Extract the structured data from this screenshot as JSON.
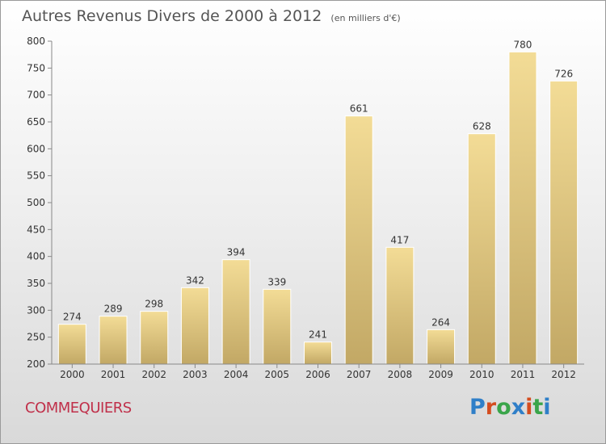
{
  "header": {
    "title": "Autres Revenus Divers de 2000 à 2012",
    "unit": "(en milliers d'€)"
  },
  "commune": "COMMEQUIERS",
  "brand": {
    "letters": [
      "P",
      "r",
      "o",
      "x",
      "i",
      "t",
      "i"
    ],
    "colors": [
      "#2f7fc8",
      "#d44d1f",
      "#3aa54a",
      "#2f7fc8",
      "#d44d1f",
      "#3aa54a",
      "#2f7fc8"
    ]
  },
  "chart_data": {
    "type": "bar",
    "categories": [
      "2000",
      "2001",
      "2002",
      "2003",
      "2004",
      "2005",
      "2006",
      "2007",
      "2008",
      "2009",
      "2010",
      "2011",
      "2012"
    ],
    "values": [
      274,
      289,
      298,
      342,
      394,
      339,
      241,
      661,
      417,
      264,
      628,
      780,
      726
    ],
    "ylim": [
      200,
      800
    ],
    "yticks": [
      200,
      250,
      300,
      350,
      400,
      450,
      500,
      550,
      600,
      650,
      700,
      750,
      800
    ],
    "grid": false,
    "bar_color": "#d9c07a"
  }
}
